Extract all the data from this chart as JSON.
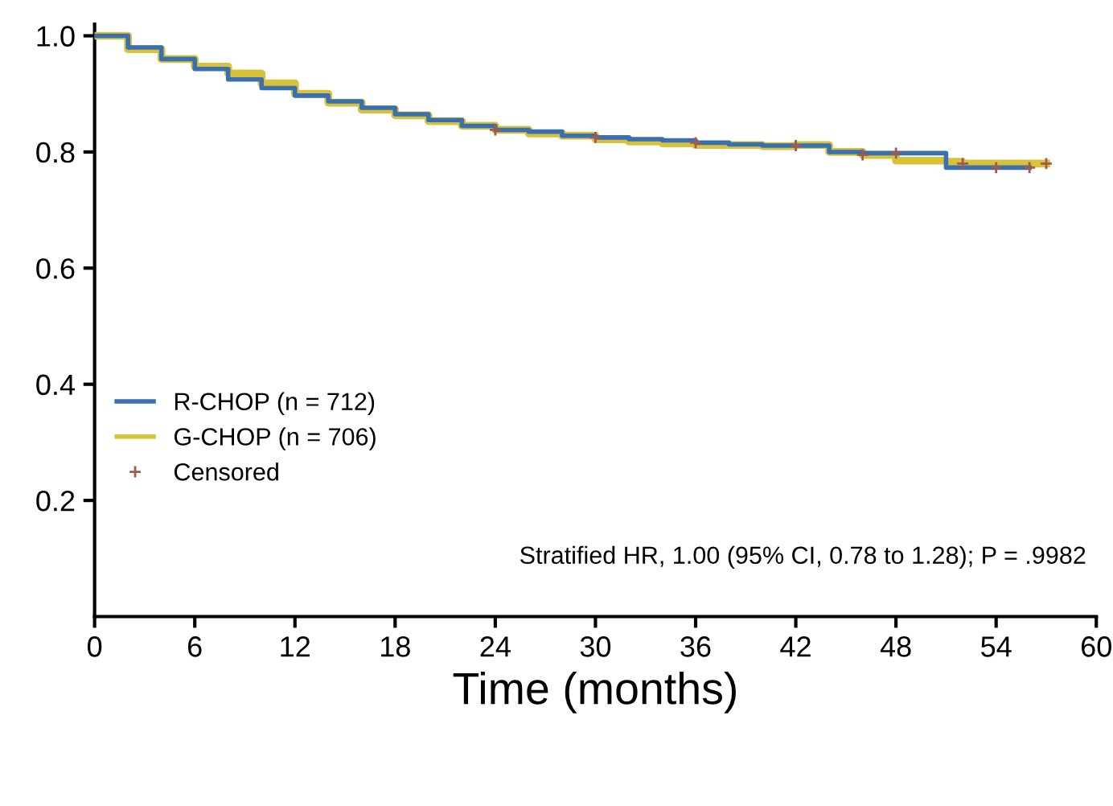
{
  "chart_data": {
    "type": "step",
    "xlabel": "Time (months)",
    "x": [
      0,
      2,
      4,
      6,
      8,
      10,
      12,
      14,
      16,
      18,
      20,
      22,
      24,
      26,
      28,
      30,
      32,
      34,
      36,
      38,
      40,
      42,
      44,
      46,
      48,
      50,
      51,
      52,
      54,
      56
    ],
    "series": [
      {
        "name": "R-CHOP (n = 712)",
        "color": "#3a6fb0",
        "values": [
          1.0,
          0.98,
          0.96,
          0.943,
          0.925,
          0.91,
          0.897,
          0.887,
          0.876,
          0.865,
          0.855,
          0.845,
          0.838,
          0.835,
          0.828,
          0.825,
          0.822,
          0.82,
          0.816,
          0.813,
          0.811,
          0.811,
          0.8,
          0.798,
          0.798,
          0.798,
          0.773,
          0.773,
          0.773,
          0.773
        ]
      },
      {
        "name": "G-CHOP (n = 706)",
        "color": "#d8c23a",
        "x": [
          0,
          2,
          4,
          6,
          8,
          10,
          12,
          14,
          16,
          18,
          20,
          22,
          24,
          26,
          28,
          30,
          32,
          34,
          36,
          38,
          40,
          42,
          44,
          46,
          48,
          50,
          51,
          52,
          54,
          57
        ],
        "values": [
          1.0,
          0.977,
          0.96,
          0.947,
          0.935,
          0.918,
          0.9,
          0.885,
          0.873,
          0.863,
          0.853,
          0.845,
          0.838,
          0.832,
          0.828,
          0.822,
          0.818,
          0.815,
          0.812,
          0.812,
          0.81,
          0.812,
          0.8,
          0.795,
          0.785,
          0.785,
          0.783,
          0.78,
          0.78,
          0.78
        ]
      },
      {
        "name": "Censored",
        "type": "scatter",
        "color": "#a05a50",
        "marker": "cross",
        "x": [
          24,
          30,
          36,
          42,
          46,
          48,
          52,
          54,
          56,
          57
        ],
        "values": [
          0.838,
          0.825,
          0.816,
          0.811,
          0.795,
          0.798,
          0.78,
          0.773,
          0.773,
          0.78
        ]
      }
    ],
    "xlim": [
      0,
      60
    ],
    "xticks": [
      0,
      6,
      12,
      18,
      24,
      30,
      36,
      42,
      48,
      54,
      60
    ],
    "ylim": [
      0,
      1.02
    ],
    "yticks": [
      0.2,
      0.4,
      0.6,
      0.8,
      {
        "value": 1.0,
        "label": "1.0"
      }
    ],
    "legend": "left",
    "grid": false,
    "annotations": [
      "Stratified HR, 1.00 (95% CI, 0.78 to 1.28); P = .9982"
    ]
  }
}
